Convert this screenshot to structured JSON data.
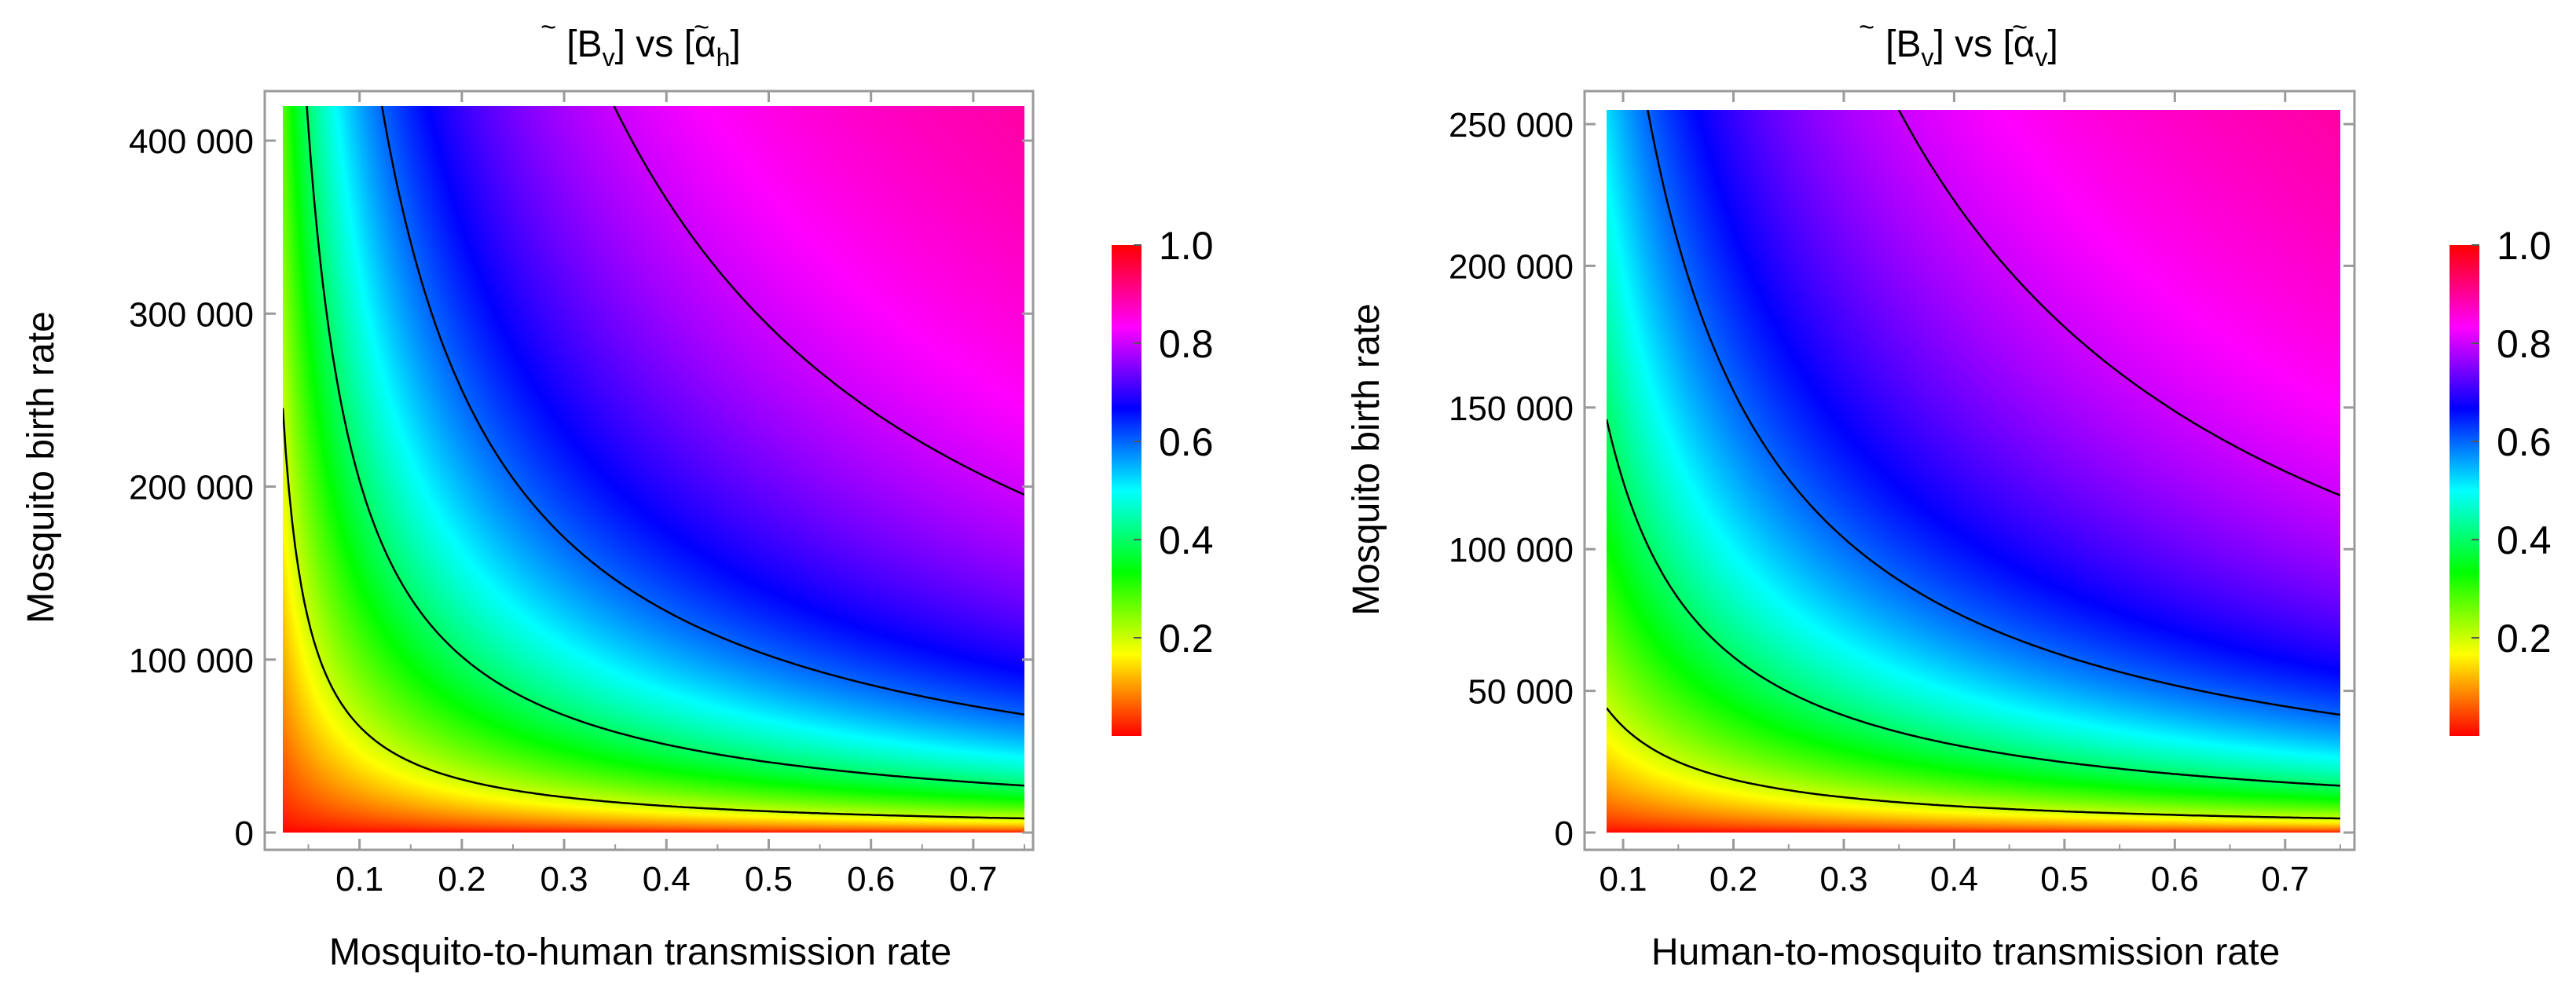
{
  "chart_data": [
    {
      "type": "heatmap",
      "title": "[B̃v] vs [α̃h]",
      "title_parts": {
        "b": "B",
        "b_sub": "v",
        "vs": "vs",
        "a": "α",
        "a_sub": "h"
      },
      "xlabel": "Mosquito-to-human transmission rate",
      "ylabel": "Mosquito birth rate",
      "xlim": [
        0.025,
        0.75
      ],
      "ylim": [
        0,
        420000
      ],
      "x_ticks": [
        0.1,
        0.2,
        0.3,
        0.4,
        0.5,
        0.6,
        0.7
      ],
      "x_tick_labels": [
        "0.1",
        "0.2",
        "0.3",
        "0.4",
        "0.5",
        "0.6",
        "0.7"
      ],
      "y_ticks": [
        0,
        100000,
        200000,
        300000,
        400000
      ],
      "y_tick_labels": [
        "0",
        "100 000",
        "200 000",
        "300 000",
        "400 000"
      ],
      "model": "value = (x*y / (x*y + K))^0.7",
      "K": 55000,
      "value_range": [
        0,
        1
      ],
      "contour_levels": [
        0.2,
        0.4,
        0.6,
        0.8,
        0.99
      ],
      "colorbar_ticks": [
        0.2,
        0.4,
        0.6,
        0.8,
        1.0
      ],
      "colorbar_tick_labels": [
        "0.2",
        "0.4",
        "0.6",
        "0.8",
        "1.0"
      ]
    },
    {
      "type": "heatmap",
      "title": "[B̃v] vs [α̃v]",
      "title_parts": {
        "b": "B",
        "b_sub": "v",
        "vs": "vs",
        "a": "α",
        "a_sub": "v"
      },
      "xlabel": "Human-to-mosquito transmission rate",
      "ylabel": "Mosquito birth rate",
      "xlim": [
        0.085,
        0.75
      ],
      "ylim": [
        0,
        255000
      ],
      "x_ticks": [
        0.1,
        0.2,
        0.3,
        0.4,
        0.5,
        0.6,
        0.7
      ],
      "x_tick_labels": [
        "0.1",
        "0.2",
        "0.3",
        "0.4",
        "0.5",
        "0.6",
        "0.7"
      ],
      "y_ticks": [
        0,
        50000,
        100000,
        150000,
        200000,
        250000
      ],
      "y_tick_labels": [
        "0",
        "50 000",
        "100 000",
        "150 000",
        "200 000",
        "250 000"
      ],
      "model": "value = (x*y / (x*y + K))^0.7",
      "K": 33500,
      "value_range": [
        0,
        1
      ],
      "contour_levels": [
        0.2,
        0.4,
        0.6,
        0.8,
        0.99
      ],
      "colorbar_ticks": [
        0.2,
        0.4,
        0.6,
        0.8,
        1.0
      ],
      "colorbar_tick_labels": [
        "0.2",
        "0.4",
        "0.6",
        "0.8",
        "1.0"
      ]
    }
  ],
  "colors": {
    "frame": "#9a9a9a",
    "contour": "#000000",
    "colormap": [
      "#ff0000",
      "#ffff00",
      "#00ff00",
      "#00ffff",
      "#0000ff",
      "#ff00ff",
      "#ff0000"
    ]
  }
}
